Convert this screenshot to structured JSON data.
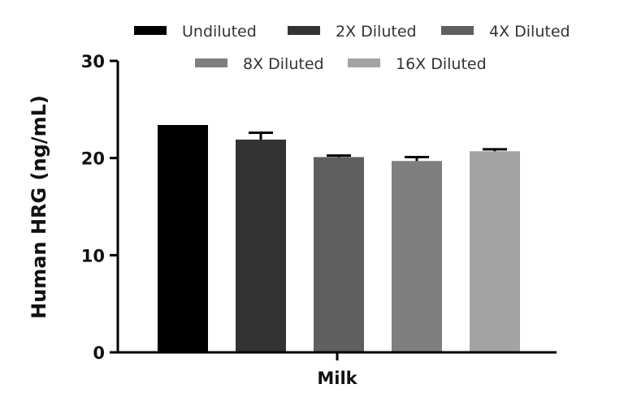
{
  "chart_data": {
    "type": "bar",
    "categories": [
      "Milk"
    ],
    "series": [
      {
        "name": "Undiluted",
        "values": [
          23.4
        ],
        "error": [
          0.0
        ],
        "color": "#000000"
      },
      {
        "name": "2X Diluted",
        "values": [
          21.9
        ],
        "error": [
          0.7
        ],
        "color": "#333333"
      },
      {
        "name": "4X Diluted",
        "values": [
          20.1
        ],
        "error": [
          0.15
        ],
        "color": "#5f5f5f"
      },
      {
        "name": "8X Diluted",
        "values": [
          19.7
        ],
        "error": [
          0.4
        ],
        "color": "#7f7f7f"
      },
      {
        "name": "16X Diluted",
        "values": [
          20.7
        ],
        "error": [
          0.2
        ],
        "color": "#a3a3a3"
      }
    ],
    "ylabel": "Human HRG (ng/mL)",
    "xlabel": "",
    "ylim": [
      0,
      30
    ],
    "yticks": [
      0,
      10,
      20,
      30
    ],
    "legend_position": "top",
    "grid": false
  }
}
